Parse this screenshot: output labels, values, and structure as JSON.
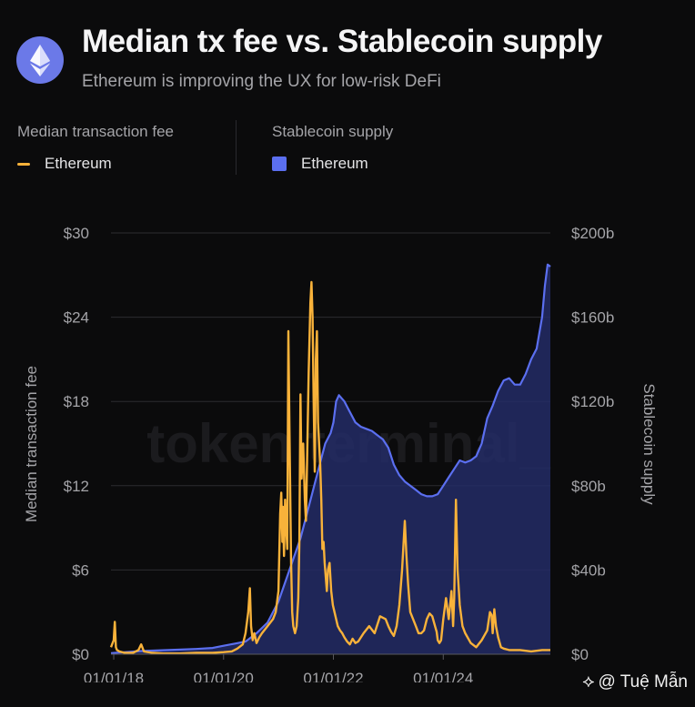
{
  "header": {
    "title": "Median tx fee vs. Stablecoin supply",
    "subtitle": "Ethereum is improving the UX for low-risk DeFi",
    "logo_icon": "ethereum-logo-icon"
  },
  "legend": {
    "fee": {
      "heading": "Median transaction fee",
      "item": "Ethereum",
      "color": "#f8b23a"
    },
    "supply": {
      "heading": "Stablecoin supply",
      "item": "Ethereum",
      "color": "#5b6ff0"
    }
  },
  "watermark": "token terminal_",
  "credit": {
    "text": "@ Tuệ Mẫn",
    "icon": "diamond-logo-icon"
  },
  "chart_data": {
    "type": "line",
    "left_axis": {
      "label": "Median transaction fee",
      "ticks": [
        "$0",
        "$6",
        "$12",
        "$18",
        "$24",
        "$30"
      ],
      "range": [
        0,
        30
      ]
    },
    "right_axis": {
      "label": "Stablecoin supply",
      "ticks": [
        "$0",
        "$40b",
        "$80b",
        "$120b",
        "$160b",
        "$200b"
      ],
      "range": [
        0,
        200
      ]
    },
    "x_axis": {
      "ticks": [
        "01/01/18",
        "01/01/20",
        "01/01/22",
        "01/01/24"
      ],
      "range": [
        2017.95,
        2025.95
      ]
    },
    "grid": true,
    "series": [
      {
        "name": "Ethereum",
        "type": "line",
        "axis": "left",
        "color": "#f8b23a",
        "x": [
          2017.95,
          2018.0,
          2018.02,
          2018.04,
          2018.06,
          2018.1,
          2018.2,
          2018.35,
          2018.45,
          2018.5,
          2018.55,
          2018.7,
          2018.9,
          2019.2,
          2019.5,
          2019.8,
          2020.0,
          2020.15,
          2020.25,
          2020.35,
          2020.4,
          2020.45,
          2020.48,
          2020.5,
          2020.53,
          2020.56,
          2020.6,
          2020.65,
          2020.7,
          2020.8,
          2020.9,
          2020.95,
          2021.0,
          2021.03,
          2021.05,
          2021.07,
          2021.08,
          2021.1,
          2021.12,
          2021.14,
          2021.16,
          2021.18,
          2021.2,
          2021.23,
          2021.25,
          2021.27,
          2021.3,
          2021.33,
          2021.36,
          2021.38,
          2021.4,
          2021.42,
          2021.45,
          2021.48,
          2021.5,
          2021.52,
          2021.55,
          2021.58,
          2021.6,
          2021.62,
          2021.64,
          2021.66,
          2021.68,
          2021.7,
          2021.72,
          2021.74,
          2021.76,
          2021.78,
          2021.8,
          2021.82,
          2021.84,
          2021.86,
          2021.88,
          2021.9,
          2021.93,
          2021.96,
          2021.99,
          2022.02,
          2022.05,
          2022.08,
          2022.12,
          2022.16,
          2022.2,
          2022.25,
          2022.3,
          2022.35,
          2022.4,
          2022.45,
          2022.55,
          2022.65,
          2022.75,
          2022.85,
          2022.95,
          2023.0,
          2023.05,
          2023.1,
          2023.15,
          2023.2,
          2023.25,
          2023.3,
          2023.33,
          2023.36,
          2023.4,
          2023.45,
          2023.5,
          2023.55,
          2023.6,
          2023.65,
          2023.7,
          2023.75,
          2023.8,
          2023.85,
          2023.88,
          2023.9,
          2023.93,
          2023.96,
          2024.0,
          2024.05,
          2024.1,
          2024.15,
          2024.18,
          2024.2,
          2024.23,
          2024.26,
          2024.3,
          2024.35,
          2024.4,
          2024.5,
          2024.6,
          2024.7,
          2024.8,
          2024.85,
          2024.88,
          2024.9,
          2024.93,
          2024.96,
          2025.0,
          2025.05,
          2025.1,
          2025.2,
          2025.4,
          2025.6,
          2025.8,
          2025.95
        ],
        "y": [
          0.5,
          1.0,
          2.3,
          0.5,
          0.3,
          0.2,
          0.1,
          0.1,
          0.3,
          0.7,
          0.2,
          0.1,
          0.05,
          0.05,
          0.1,
          0.1,
          0.15,
          0.2,
          0.4,
          0.7,
          1.5,
          3.0,
          4.7,
          2.0,
          1.0,
          1.5,
          0.8,
          1.2,
          1.5,
          2.0,
          2.5,
          3.0,
          4.5,
          10.0,
          11.5,
          8.0,
          10.5,
          7.0,
          11.0,
          9.0,
          7.5,
          23.0,
          16.0,
          6.5,
          3.0,
          2.0,
          1.5,
          2.0,
          4.0,
          8.0,
          18.5,
          12.5,
          15.0,
          11.0,
          9.5,
          13.5,
          20.0,
          25.0,
          26.5,
          24.0,
          18.0,
          13.0,
          21.0,
          23.0,
          16.5,
          15.0,
          13.5,
          11.0,
          7.5,
          8.0,
          6.5,
          5.5,
          4.5,
          6.0,
          6.5,
          4.5,
          3.5,
          3.0,
          2.5,
          2.0,
          1.7,
          1.5,
          1.2,
          0.9,
          0.7,
          1.1,
          0.8,
          0.9,
          1.5,
          2.0,
          1.5,
          2.7,
          2.5,
          2.0,
          1.6,
          1.3,
          2.0,
          3.5,
          6.0,
          9.5,
          7.0,
          5.0,
          3.0,
          2.5,
          2.0,
          1.5,
          1.5,
          1.7,
          2.5,
          2.9,
          2.7,
          2.0,
          1.6,
          1.0,
          0.8,
          1.0,
          2.5,
          4.0,
          2.5,
          4.5,
          2.0,
          4.0,
          11.0,
          6.0,
          3.5,
          2.0,
          1.5,
          0.8,
          0.5,
          1.0,
          1.7,
          3.0,
          2.8,
          1.5,
          3.2,
          2.0,
          1.2,
          0.5,
          0.4,
          0.3,
          0.3,
          0.2,
          0.3,
          0.3
        ]
      },
      {
        "name": "Ethereum",
        "type": "area",
        "axis": "right",
        "color": "#5b6ff0",
        "x": [
          2017.95,
          2018.5,
          2019.0,
          2019.5,
          2019.8,
          2020.0,
          2020.2,
          2020.4,
          2020.6,
          2020.8,
          2021.0,
          2021.2,
          2021.4,
          2021.6,
          2021.75,
          2021.85,
          2021.95,
          2022.0,
          2022.05,
          2022.1,
          2022.2,
          2022.3,
          2022.4,
          2022.5,
          2022.6,
          2022.7,
          2022.8,
          2022.9,
          2023.0,
          2023.1,
          2023.2,
          2023.3,
          2023.4,
          2023.5,
          2023.6,
          2023.7,
          2023.8,
          2023.9,
          2024.0,
          2024.1,
          2024.2,
          2024.3,
          2024.4,
          2024.5,
          2024.6,
          2024.7,
          2024.8,
          2024.9,
          2025.0,
          2025.1,
          2025.2,
          2025.3,
          2025.4,
          2025.5,
          2025.6,
          2025.7,
          2025.8,
          2025.85,
          2025.9,
          2025.95
        ],
        "y": [
          0.5,
          1.5,
          2.0,
          2.5,
          3.0,
          4.0,
          5.0,
          6.0,
          10.0,
          15.0,
          25.0,
          40.0,
          55.0,
          75.0,
          90.0,
          100.0,
          105.0,
          110.0,
          120.0,
          123.0,
          120.0,
          115.0,
          110.0,
          108.0,
          107.0,
          106.0,
          104.0,
          102.0,
          98.0,
          90.0,
          85.0,
          82.0,
          80.0,
          78.0,
          76.0,
          75.0,
          75.0,
          76.0,
          80.0,
          84.0,
          88.0,
          92.0,
          91.0,
          92.0,
          94.0,
          100.0,
          112.0,
          118.0,
          125.0,
          130.0,
          131.0,
          128.0,
          128.0,
          133.0,
          140.0,
          145.0,
          160.0,
          175.0,
          185.0,
          184.0
        ]
      }
    ]
  }
}
